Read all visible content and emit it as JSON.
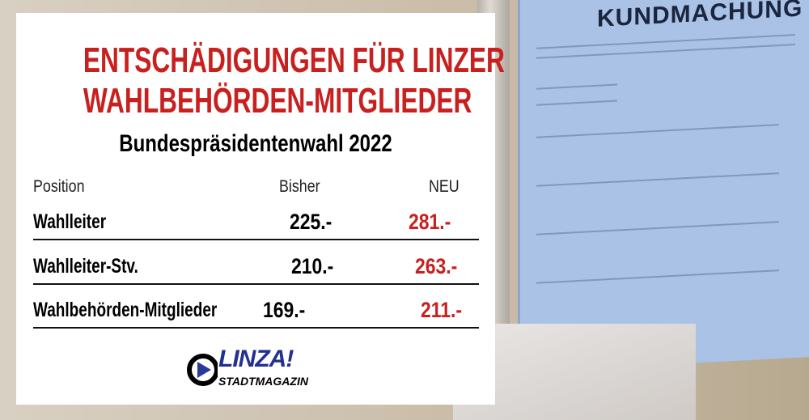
{
  "background": {
    "poster_heading": "KUNDMACHUNG"
  },
  "infographic": {
    "title_line1": "ENTSCHÄDIGUNGEN FÜR LINZER",
    "title_line2": "WAHLBEHÖRDEN-MITGLIEDER",
    "subtitle": "Bundespräsidentenwahl 2022",
    "columns": [
      "Position",
      "Bisher",
      "NEU"
    ],
    "rows": [
      {
        "position": "Wahlleiter",
        "bisher": "225.-",
        "neu": "281.-"
      },
      {
        "position": "Wahlleiter-Stv.",
        "bisher": "210.-",
        "neu": "263.-"
      },
      {
        "position": "Wahlbehörden-Mitglieder",
        "bisher": "169.-",
        "neu": "211.-"
      }
    ],
    "accent_color": "#c8201e"
  },
  "logo": {
    "name": "LINZA!",
    "tagline": "STADTMAGAZIN"
  }
}
